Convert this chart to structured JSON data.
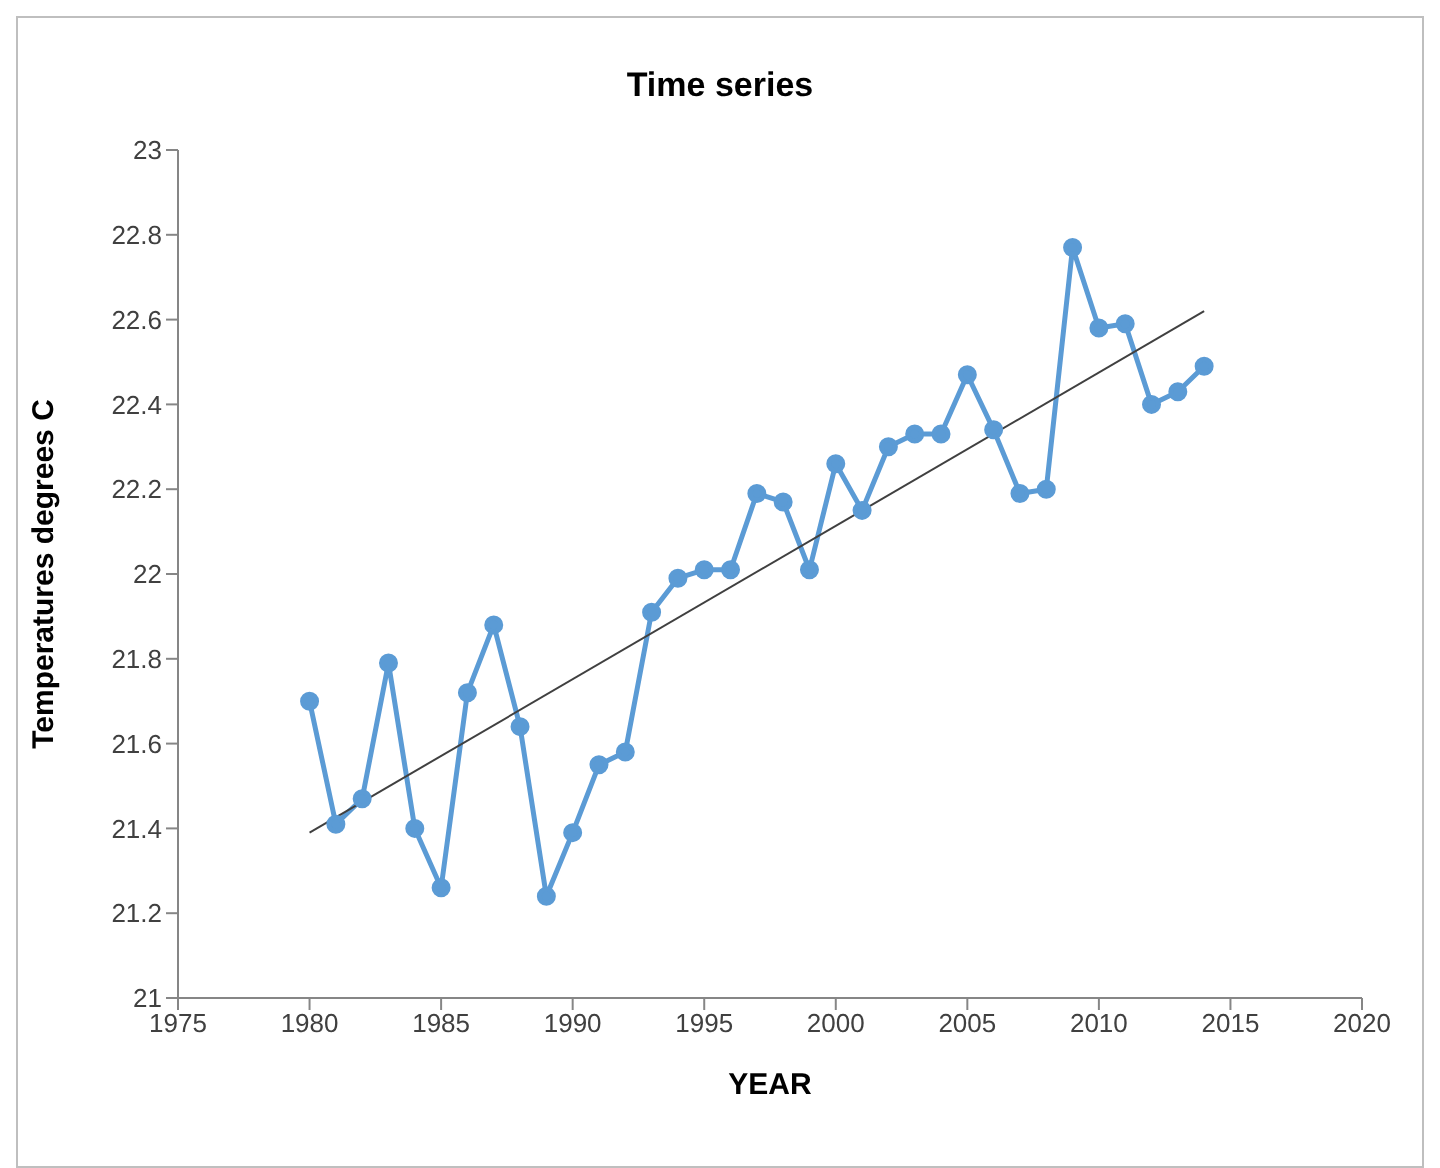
{
  "chart_data": {
    "type": "line",
    "title": "Time series",
    "xlabel": "YEAR",
    "ylabel": "Temperatures degrees C",
    "x": [
      1980,
      1981,
      1982,
      1983,
      1984,
      1985,
      1986,
      1987,
      1988,
      1989,
      1990,
      1991,
      1992,
      1993,
      1994,
      1995,
      1996,
      1997,
      1998,
      1999,
      2000,
      2001,
      2002,
      2003,
      2004,
      2005,
      2006,
      2007,
      2008,
      2009,
      2010,
      2011,
      2012,
      2013,
      2014
    ],
    "series": [
      {
        "color": "#5b9bd5",
        "marker": "circle",
        "values": [
          21.7,
          21.41,
          21.47,
          21.79,
          21.4,
          21.26,
          21.72,
          21.88,
          21.64,
          21.24,
          21.39,
          21.55,
          21.58,
          21.91,
          21.99,
          22.01,
          22.01,
          22.19,
          22.17,
          22.01,
          22.26,
          22.15,
          22.3,
          22.33,
          22.33,
          22.47,
          22.34,
          22.19,
          22.2,
          22.77,
          22.58,
          22.59,
          22.4,
          22.43,
          22.49
        ]
      },
      {
        "type": "line",
        "color": "#404040",
        "marker": "none",
        "x": [
          1980,
          2014
        ],
        "values": [
          21.39,
          22.62
        ]
      }
    ],
    "xlim": [
      1975,
      2020
    ],
    "xticks": [
      1975,
      1980,
      1985,
      1990,
      1995,
      2000,
      2005,
      2010,
      2015,
      2020
    ],
    "ylim": [
      21,
      23
    ],
    "yticks": [
      21,
      21.2,
      21.4,
      21.6,
      21.8,
      22,
      22.2,
      22.4,
      22.6,
      22.8,
      23
    ]
  }
}
